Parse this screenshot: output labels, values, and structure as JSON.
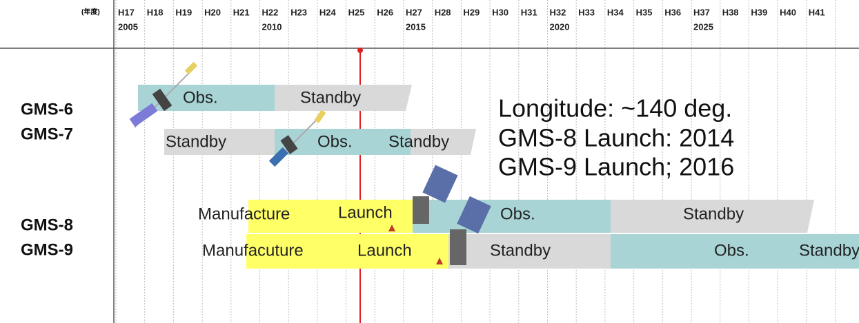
{
  "header": {
    "unit_label": "(年度)",
    "fiscal_years": [
      "H17",
      "H18",
      "H19",
      "H20",
      "H21",
      "H22",
      "H23",
      "H24",
      "H25",
      "H26",
      "H27",
      "H28",
      "H29",
      "H30",
      "H31",
      "H32",
      "H33",
      "H34",
      "H35",
      "H36",
      "H37",
      "H38",
      "H39",
      "H40",
      "H41"
    ],
    "calendar_years": [
      "2005",
      "2010",
      "2015",
      "2020",
      "2025"
    ]
  },
  "satellites": [
    "GMS-6",
    "GMS-7",
    "GMS-8",
    "GMS-9"
  ],
  "bars": {
    "gms6": [
      "Obs.",
      "Standby"
    ],
    "gms7": [
      "Standby",
      "Obs.",
      "Standby"
    ],
    "gms8": [
      "Manufacture",
      "Launch",
      "Obs.",
      "Standby"
    ],
    "gms9": [
      "Manufacuture",
      "Launch",
      "Standby",
      "Obs.",
      "Standby"
    ]
  },
  "annotations": [
    "Longitude: ~140 deg.",
    "GMS-8 Launch: 2014",
    "GMS-9 Launch; 2016"
  ]
}
